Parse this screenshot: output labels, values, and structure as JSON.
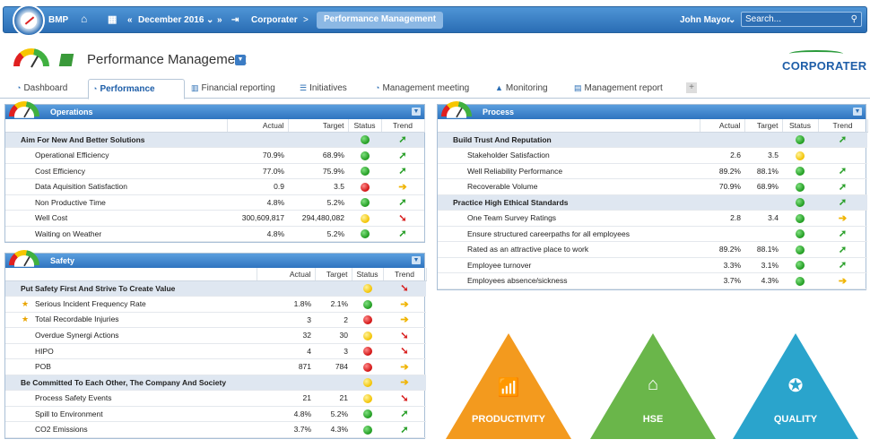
{
  "topbar": {
    "app_name": "BMP",
    "date": "December 2016",
    "crumb1": "Corporater",
    "crumb2": "Performance Management",
    "user": "John Mayor",
    "search_placeholder": "Search..."
  },
  "header": {
    "title": "Performance Management",
    "brand": "CORPORATER"
  },
  "tabs": [
    {
      "label": "Dashboard",
      "icon": "gauge-icon"
    },
    {
      "label": "Performance",
      "icon": "gauge-icon"
    },
    {
      "label": "Financial reporting",
      "icon": "bar-chart-icon"
    },
    {
      "label": "Initiatives",
      "icon": "list-icon"
    },
    {
      "label": "Management meeting",
      "icon": "gauge-icon"
    },
    {
      "label": "Monitoring",
      "icon": "warning-icon"
    },
    {
      "label": "Management report",
      "icon": "document-icon"
    }
  ],
  "columns": {
    "actual": "Actual",
    "target": "Target",
    "status": "Status",
    "trend": "Trend"
  },
  "operations": {
    "title": "Operations",
    "groups": [
      {
        "name": "Aim For New And Better Solutions",
        "status": "green",
        "trend": "up",
        "rows": [
          {
            "name": "Operational Efficiency",
            "actual": "70.9%",
            "target": "68.9%",
            "status": "green",
            "trend": "up"
          },
          {
            "name": "Cost Efficiency",
            "actual": "77.0%",
            "target": "75.9%",
            "status": "green",
            "trend": "up"
          },
          {
            "name": "Data Aquisition Satisfaction",
            "actual": "0.9",
            "target": "3.5",
            "status": "red",
            "trend": "right"
          },
          {
            "name": "Non Productive Time",
            "actual": "4.8%",
            "target": "5.2%",
            "status": "green",
            "trend": "up"
          },
          {
            "name": "Well Cost",
            "actual": "300,609,817",
            "target": "294,480,082",
            "status": "yellow",
            "trend": "down"
          },
          {
            "name": "Waiting on Weather",
            "actual": "4.8%",
            "target": "5.2%",
            "status": "green",
            "trend": "up"
          }
        ]
      }
    ]
  },
  "safety": {
    "title": "Safety",
    "groups": [
      {
        "name": "Put Safety First And Strive To Create Value",
        "status": "yellow",
        "trend": "down",
        "rows": [
          {
            "name": "Serious Incident Frequency Rate",
            "actual": "1.8%",
            "target": "2.1%",
            "status": "green",
            "trend": "right",
            "star": true
          },
          {
            "name": "Total Recordable Injuries",
            "actual": "3",
            "target": "2",
            "status": "red",
            "trend": "right",
            "star": true
          },
          {
            "name": "Overdue Synergi Actions",
            "actual": "32",
            "target": "30",
            "status": "yellow",
            "trend": "down"
          },
          {
            "name": "HIPO",
            "actual": "4",
            "target": "3",
            "status": "red",
            "trend": "down"
          },
          {
            "name": "POB",
            "actual": "871",
            "target": "784",
            "status": "red",
            "trend": "right"
          }
        ]
      },
      {
        "name": "Be Committed To Each Other, The Company And Society",
        "status": "yellow",
        "trend": "right",
        "rows": [
          {
            "name": "Process Safety Events",
            "actual": "21",
            "target": "21",
            "status": "yellow",
            "trend": "down"
          },
          {
            "name": "Spill to Environment",
            "actual": "4.8%",
            "target": "5.2%",
            "status": "green",
            "trend": "up"
          },
          {
            "name": "CO2 Emissions",
            "actual": "3.7%",
            "target": "4.3%",
            "status": "green",
            "trend": "up"
          }
        ]
      }
    ]
  },
  "process": {
    "title": "Process",
    "groups": [
      {
        "name": "Build Trust And Reputation",
        "status": "green",
        "trend": "up",
        "rows": [
          {
            "name": "Stakeholder Satisfaction",
            "actual": "2.6",
            "target": "3.5",
            "status": "yellow",
            "trend": ""
          },
          {
            "name": "Well Reliability Performance",
            "actual": "89.2%",
            "target": "88.1%",
            "status": "green",
            "trend": "up"
          },
          {
            "name": "Recoverable Volume",
            "actual": "70.9%",
            "target": "68.9%",
            "status": "green",
            "trend": "up"
          }
        ]
      },
      {
        "name": "Practice High Ethical Standards",
        "status": "green",
        "trend": "up",
        "rows": [
          {
            "name": "One Team Survey Ratings",
            "actual": "2.8",
            "target": "3.4",
            "status": "green",
            "trend": "right"
          },
          {
            "name": "Ensure structured careerpaths for all employees",
            "actual": "",
            "target": "",
            "status": "green",
            "trend": "up"
          },
          {
            "name": "Rated as an attractive place to work",
            "actual": "89.2%",
            "target": "88.1%",
            "status": "green",
            "trend": "up"
          },
          {
            "name": "Employee turnover",
            "actual": "3.3%",
            "target": "3.1%",
            "status": "green",
            "trend": "up"
          },
          {
            "name": "Employees absence/sickness",
            "actual": "3.7%",
            "target": "4.3%",
            "status": "green",
            "trend": "right"
          }
        ]
      }
    ]
  },
  "triangles": [
    {
      "label": "PRODUCTIVITY",
      "color": "#f39a1e",
      "icon": "growth-chart-icon"
    },
    {
      "label": "HSE",
      "color": "#6ab64a",
      "icon": "house-hands-icon"
    },
    {
      "label": "QUALITY",
      "color": "#2aa4cc",
      "icon": "quality-badge-icon"
    }
  ]
}
